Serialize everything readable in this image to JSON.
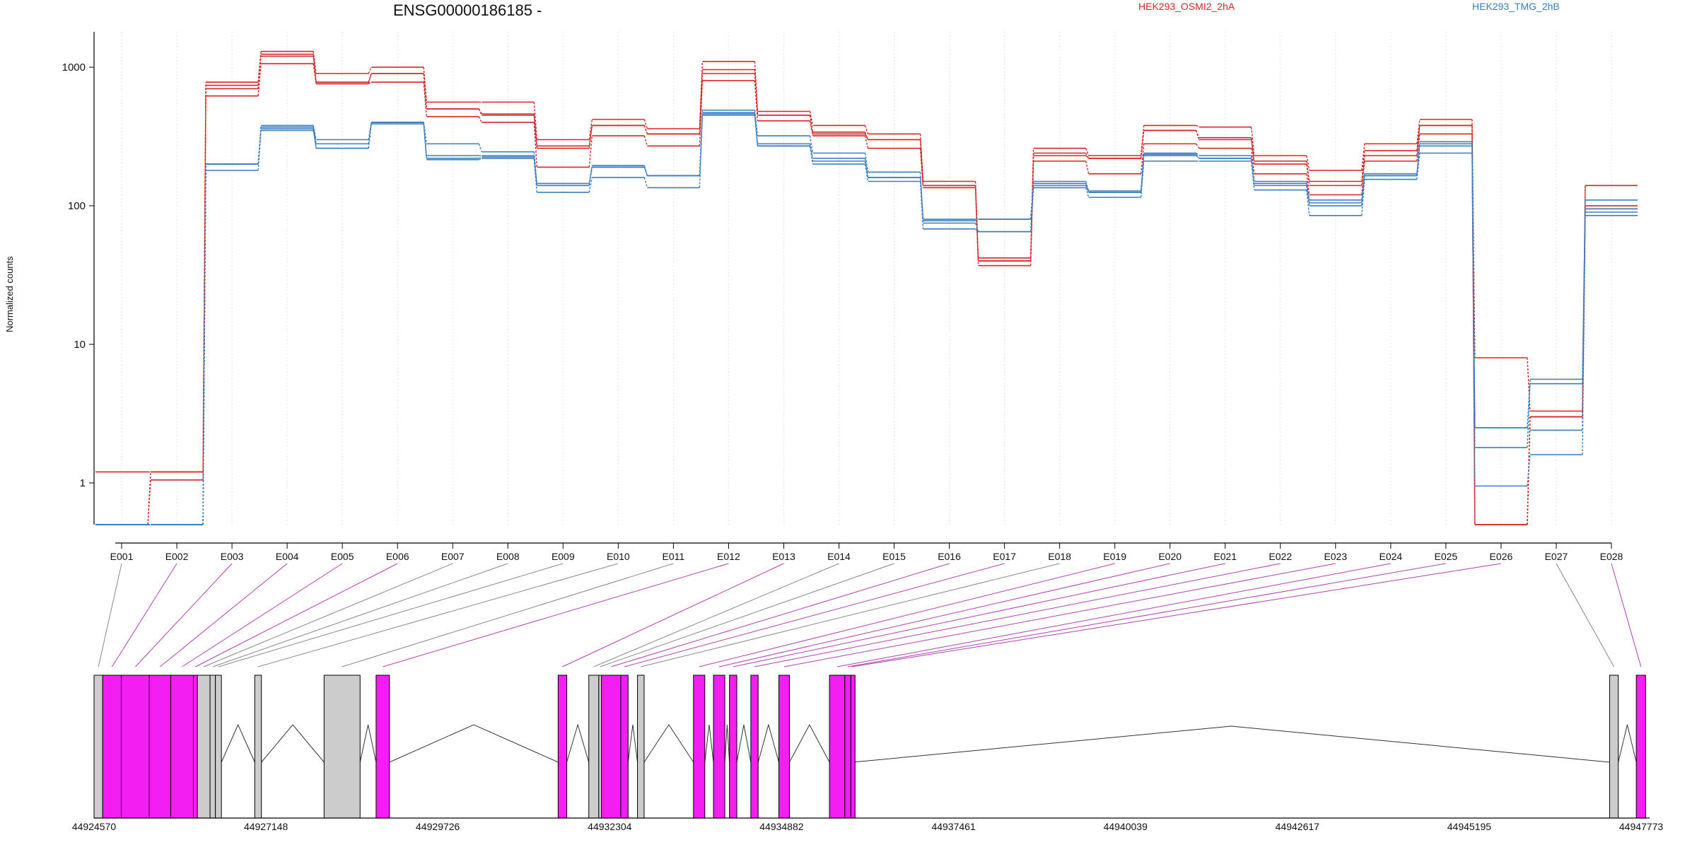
{
  "chart_data": {
    "type": "line",
    "title": "ENSG00000186185 -",
    "ylabel": "Normalized counts",
    "xlabel": "",
    "y_scale": "log",
    "ylim": [
      0.5,
      1800
    ],
    "y_ticks": [
      1,
      10,
      100,
      1000
    ],
    "y_tick_labels": [
      "1",
      "10",
      "100",
      "1000"
    ],
    "grid": "vertical dotted",
    "legend_placement": "top",
    "colors": {
      "HEK293_OSMI2_2hA": "#d62728",
      "HEK293_TMG_2hB": "#3a7ebf",
      "exon_highlight": "#f21ef2",
      "exon_plain": "#cccccc"
    },
    "categories": [
      "E001",
      "E002",
      "E003",
      "E004",
      "E005",
      "E006",
      "E007",
      "E008",
      "E009",
      "E010",
      "E011",
      "E012",
      "E013",
      "E014",
      "E015",
      "E016",
      "E017",
      "E018",
      "E019",
      "E020",
      "E021",
      "E022",
      "E023",
      "E024",
      "E025",
      "E026",
      "E027",
      "E028"
    ],
    "legend": [
      {
        "label": "HEK293_OSMI2_2hA",
        "color": "#d62728"
      },
      {
        "label": "HEK293_TMG_2hB",
        "color": "#3a7ebf"
      }
    ],
    "series": [
      {
        "group": "HEK293_OSMI2_2hA",
        "color": "#d62728",
        "values": [
          1.2,
          1.2,
          780,
          1300,
          900,
          1000,
          560,
          560,
          300,
          420,
          360,
          1100,
          480,
          380,
          330,
          150,
          42,
          260,
          230,
          380,
          370,
          230,
          180,
          280,
          420,
          8,
          3.3,
          140
        ]
      },
      {
        "group": "HEK293_OSMI2_2hA",
        "color": "#d62728",
        "values": [
          0.5,
          1.2,
          740,
          1240,
          780,
          900,
          500,
          450,
          270,
          380,
          330,
          960,
          450,
          340,
          300,
          140,
          40,
          240,
          220,
          350,
          300,
          210,
          150,
          250,
          380,
          0.5,
          3.0,
          140
        ]
      },
      {
        "group": "HEK293_OSMI2_2hA",
        "color": "#d62728",
        "values": [
          0.5,
          1.05,
          620,
          1060,
          760,
          780,
          440,
          400,
          190,
          320,
          270,
          800,
          410,
          320,
          260,
          135,
          37,
          210,
          170,
          280,
          260,
          170,
          120,
          210,
          330,
          0.5,
          3.0,
          100
        ]
      },
      {
        "group": "HEK293_OSMI2_2hA",
        "color": "#d62728",
        "values": [
          0.5,
          0.5,
          700,
          1200,
          760,
          900,
          500,
          460,
          260,
          380,
          330,
          900,
          450,
          330,
          300,
          140,
          40,
          230,
          220,
          350,
          310,
          200,
          140,
          230,
          380,
          0.5,
          3.0,
          95
        ]
      },
      {
        "group": "HEK293_TMG_2hB",
        "color": "#3a7ebf",
        "values": [
          0.5,
          0.5,
          200,
          380,
          300,
          400,
          280,
          245,
          145,
          195,
          165,
          490,
          320,
          240,
          175,
          80,
          80,
          150,
          128,
          240,
          230,
          150,
          110,
          170,
          290,
          2.5,
          5.6,
          110
        ]
      },
      {
        "group": "HEK293_TMG_2hB",
        "color": "#3a7ebf",
        "values": [
          0.5,
          0.5,
          200,
          360,
          260,
          400,
          230,
          230,
          140,
          190,
          165,
          460,
          280,
          220,
          160,
          75,
          65,
          140,
          125,
          230,
          220,
          140,
          100,
          165,
          270,
          1.8,
          5.2,
          90
        ]
      },
      {
        "group": "HEK293_TMG_2hB",
        "color": "#3a7ebf",
        "values": [
          0.5,
          0.5,
          180,
          350,
          260,
          390,
          215,
          220,
          125,
          160,
          135,
          450,
          270,
          200,
          150,
          68,
          65,
          135,
          115,
          210,
          210,
          130,
          85,
          155,
          240,
          0.95,
          1.6,
          85
        ]
      },
      {
        "group": "HEK293_TMG_2hB",
        "color": "#3a7ebf",
        "values": [
          0.5,
          0.5,
          200,
          370,
          280,
          400,
          220,
          225,
          140,
          190,
          165,
          470,
          270,
          210,
          160,
          78,
          80,
          145,
          125,
          235,
          220,
          145,
          105,
          165,
          280,
          2.5,
          2.4,
          95
        ]
      }
    ],
    "genome_axis": {
      "range": [
        44924570,
        44947900
      ],
      "ticks": [
        44924570,
        44927148,
        44929726,
        44932304,
        44934882,
        44937461,
        44940039,
        44942617,
        44945195,
        44947773
      ],
      "tick_labels": [
        "44924570",
        "44927148",
        "44929726",
        "44932304",
        "44934882",
        "44937461",
        "44940039",
        "44942617",
        "44945195",
        "44947773"
      ]
    },
    "exons": [
      {
        "id": "E001",
        "start": 44924570,
        "end": 44924700,
        "highlight": false
      },
      {
        "id": "E002",
        "start": 44924700,
        "end": 44924980,
        "highlight": true
      },
      {
        "id": "E003",
        "start": 44924980,
        "end": 44925400,
        "highlight": true
      },
      {
        "id": "E004",
        "start": 44925400,
        "end": 44925720,
        "highlight": true
      },
      {
        "id": "E005",
        "start": 44925720,
        "end": 44926060,
        "highlight": true
      },
      {
        "id": "E006",
        "start": 44926060,
        "end": 44926120,
        "highlight": true
      },
      {
        "id": "E007",
        "start": 44926120,
        "end": 44926310,
        "highlight": false
      },
      {
        "id": "E008",
        "start": 44926310,
        "end": 44926390,
        "highlight": false
      },
      {
        "id": "E009",
        "start": 44926390,
        "end": 44926480,
        "highlight": false
      },
      {
        "id": "E010",
        "start": 44926980,
        "end": 44927080,
        "highlight": false
      },
      {
        "id": "E011",
        "start": 44928020,
        "end": 44928560,
        "highlight": false
      },
      {
        "id": "E012",
        "start": 44928800,
        "end": 44929000,
        "highlight": true
      },
      {
        "id": "E013",
        "start": 44931530,
        "end": 44931660,
        "highlight": true
      },
      {
        "id": "E014",
        "start": 44931990,
        "end": 44932140,
        "highlight": false
      },
      {
        "id": "E015",
        "start": 44932140,
        "end": 44932180,
        "highlight": false
      },
      {
        "id": "E016",
        "start": 44932180,
        "end": 44932470,
        "highlight": true
      },
      {
        "id": "E017",
        "start": 44932470,
        "end": 44932580,
        "highlight": true
      },
      {
        "id": "E018",
        "start": 44932720,
        "end": 44932820,
        "highlight": false
      },
      {
        "id": "E019",
        "start": 44933560,
        "end": 44933730,
        "highlight": true
      },
      {
        "id": "E020",
        "start": 44933860,
        "end": 44934030,
        "highlight": true
      },
      {
        "id": "E021",
        "start": 44934100,
        "end": 44934210,
        "highlight": true
      },
      {
        "id": "E022",
        "start": 44934420,
        "end": 44934530,
        "highlight": true
      },
      {
        "id": "E023",
        "start": 44934840,
        "end": 44935000,
        "highlight": true
      },
      {
        "id": "E024",
        "start": 44935600,
        "end": 44935830,
        "highlight": true
      },
      {
        "id": "E025",
        "start": 44935830,
        "end": 44935920,
        "highlight": true
      },
      {
        "id": "E026",
        "start": 44935920,
        "end": 44935950,
        "highlight": true
      },
      {
        "id": "E027",
        "start": 44947300,
        "end": 44947430,
        "highlight": false
      },
      {
        "id": "E028",
        "start": 44947700,
        "end": 44947840,
        "highlight": true
      }
    ]
  }
}
